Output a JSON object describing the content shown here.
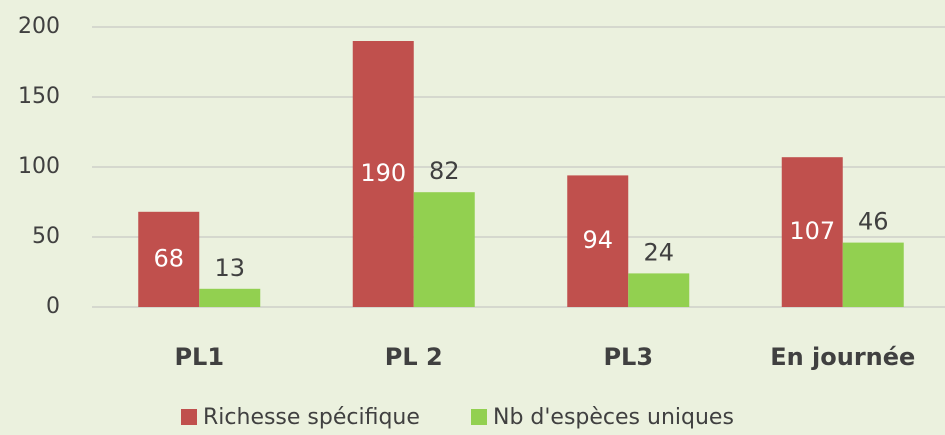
{
  "chart_data": {
    "type": "bar",
    "categories": [
      "PL1",
      "PL 2",
      "PL3",
      "En journée"
    ],
    "series": [
      {
        "name": "Richesse spécifique",
        "color": "#c0504d",
        "values": [
          68,
          190,
          94,
          107
        ]
      },
      {
        "name": "Nb d'espèces uniques",
        "color": "#92d050",
        "values": [
          13,
          82,
          24,
          46
        ]
      }
    ],
    "ylim": [
      0,
      200
    ],
    "yticks": [
      0,
      50,
      100,
      150,
      200
    ],
    "grid": true,
    "legend": "bottom"
  }
}
